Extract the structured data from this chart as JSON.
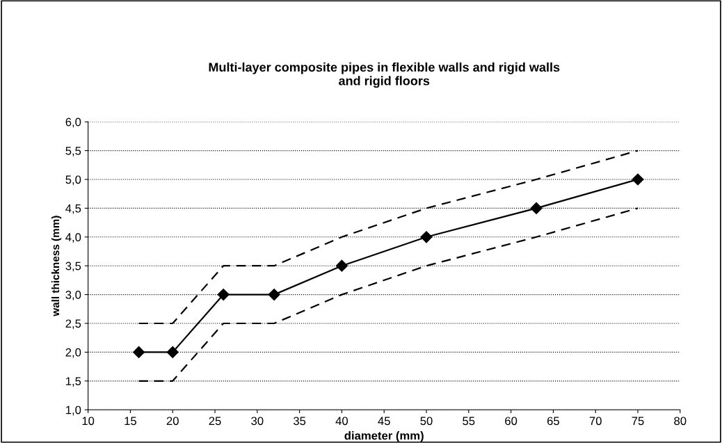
{
  "chart_data": {
    "type": "line",
    "title": "Multi-layer composite pipes in flexible walls and rigid walls\nand rigid floors",
    "xlabel": "diameter (mm)",
    "ylabel": "wall thickness (mm)",
    "x": [
      16,
      20,
      26,
      32,
      40,
      50,
      63,
      75
    ],
    "series": [
      {
        "color": "#000000",
        "marker": "diamond",
        "line_style": "solid",
        "values": [
          2.0,
          2.0,
          3.0,
          3.0,
          3.5,
          4.0,
          4.5,
          5.0
        ]
      },
      {
        "color": "#000000",
        "marker": "none",
        "line_style": "dashed",
        "values": [
          2.5,
          2.5,
          3.5,
          3.5,
          4.0,
          4.5,
          5.0,
          5.5
        ]
      },
      {
        "color": "#000000",
        "marker": "none",
        "line_style": "dashed",
        "values": [
          1.5,
          1.5,
          2.5,
          2.5,
          3.0,
          3.5,
          4.0,
          4.5
        ]
      }
    ],
    "xlim": [
      10,
      80
    ],
    "xticks": [
      10,
      15,
      20,
      25,
      30,
      35,
      40,
      45,
      50,
      55,
      60,
      65,
      70,
      75,
      80
    ],
    "ylim": [
      1.0,
      6.0
    ],
    "yticks": [
      {
        "value": 1.0,
        "label": "1,0"
      },
      {
        "value": 1.5,
        "label": "1,5"
      },
      {
        "value": 2.0,
        "label": "2,0"
      },
      {
        "value": 2.5,
        "label": "2,5"
      },
      {
        "value": 3.0,
        "label": "3,0"
      },
      {
        "value": 3.5,
        "label": "3,5"
      },
      {
        "value": 4.0,
        "label": "4,0"
      },
      {
        "value": 4.5,
        "label": "4,5"
      },
      {
        "value": 5.0,
        "label": "5,0"
      },
      {
        "value": 5.5,
        "label": "5,5"
      },
      {
        "value": 6.0,
        "label": "6,0"
      }
    ],
    "grid": "y"
  }
}
